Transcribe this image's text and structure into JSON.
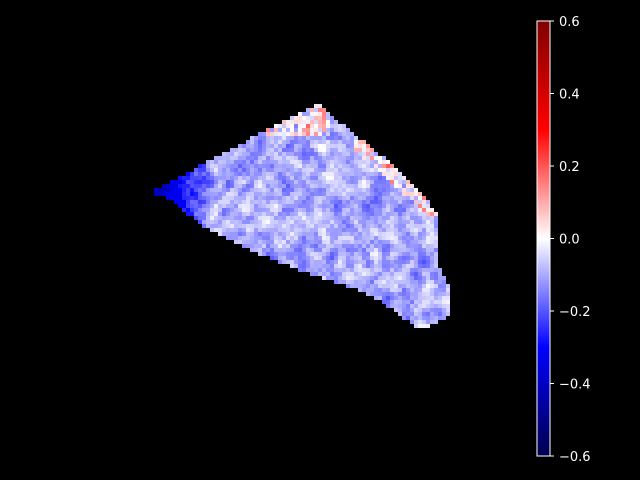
{
  "background": "#000000",
  "chart_data": {
    "type": "heatmap",
    "title": "",
    "xlabel": "",
    "ylabel": "",
    "colormap": "seismic",
    "colormap_stops": [
      "#00004c",
      "#0000ff",
      "#ffffff",
      "#ff0000",
      "#7f0000"
    ],
    "vmin": -0.6,
    "vmax": 0.6,
    "colorbar": {
      "ticks": [
        0.6,
        0.4,
        0.2,
        0.0,
        -0.2,
        -0.4,
        -0.6
      ],
      "tick_labels": [
        "0.6",
        "0.4",
        "0.2",
        "0.0",
        "−0.2",
        "−0.4",
        "−0.6"
      ],
      "tick_color": "#ffffff"
    },
    "heatmap_description": {
      "grid": [
        140,
        110
      ],
      "value_mean": -0.1,
      "value_spread": 0.12,
      "masked_region": "polygon",
      "mask_color": "#000000",
      "boundary_bias": {
        "upper_right_edge": 0.22,
        "left_tip": -0.35
      }
    }
  }
}
